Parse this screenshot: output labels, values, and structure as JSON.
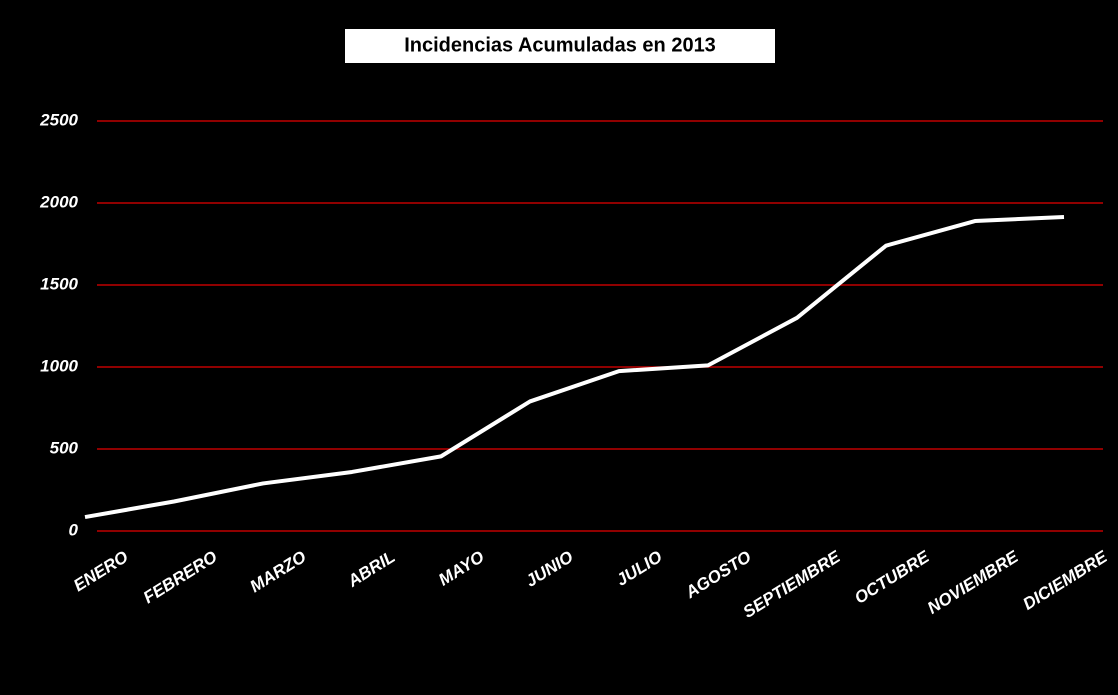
{
  "chart_data": {
    "type": "line",
    "title": "Incidencias Acumuladas en 2013",
    "categories": [
      "ENERO",
      "FEBRERO",
      "MARZO",
      "ABRIL",
      "MAYO",
      "JUNIO",
      "JULIO",
      "AGOSTO",
      "SEPTIEMBRE",
      "OCTUBRE",
      "NOVIEMBRE",
      "DICIEMBRE"
    ],
    "series": [
      {
        "color": "#ffffff",
        "values": [
          85,
          180,
          290,
          360,
          455,
          790,
          975,
          1010,
          1300,
          1740,
          1890,
          1915
        ]
      }
    ],
    "ylim": [
      0,
      2500
    ],
    "yticks": [
      0,
      500,
      1000,
      1500,
      2000,
      2500
    ],
    "grid": true,
    "grid_color": "#c00000",
    "background": "#000000"
  }
}
